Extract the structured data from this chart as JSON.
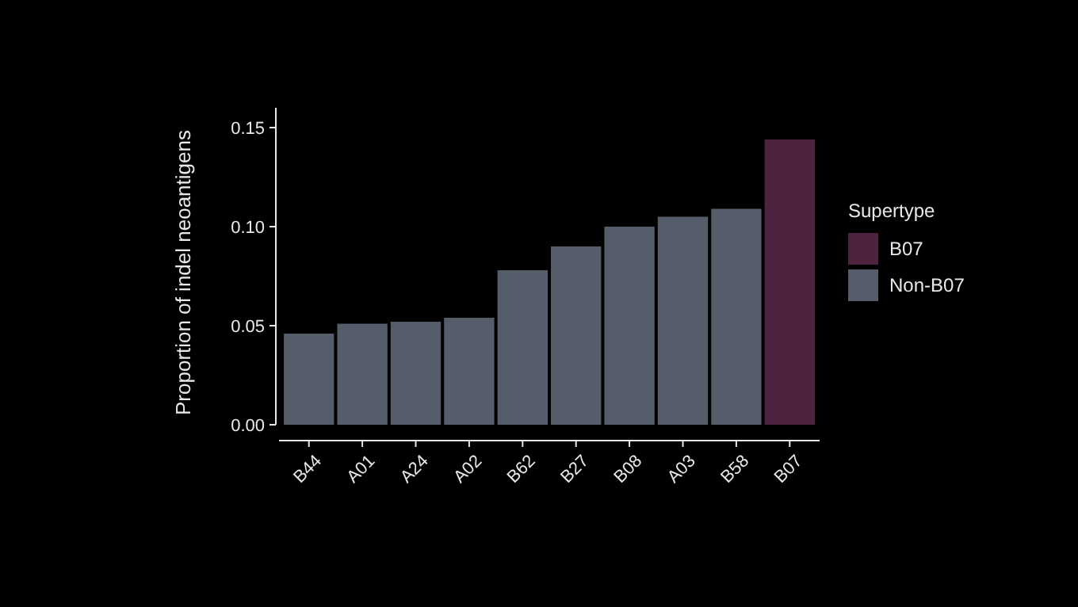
{
  "chart_data": {
    "type": "bar",
    "ylabel": "Proportion of indel neoantigens",
    "legend_title": "Supertype",
    "legend": "right",
    "categories": [
      "B44",
      "A01",
      "A24",
      "A02",
      "B62",
      "B27",
      "B08",
      "A03",
      "B58",
      "B07"
    ],
    "series": [
      {
        "name": "B07",
        "color": "#4e2340",
        "values": [
          null,
          null,
          null,
          null,
          null,
          null,
          null,
          null,
          null,
          0.144
        ]
      },
      {
        "name": "Non-B07",
        "color": "#555d6b",
        "values": [
          0.046,
          0.051,
          0.052,
          0.054,
          0.078,
          0.09,
          0.1,
          0.105,
          0.109,
          null
        ]
      }
    ],
    "ylim": [
      0,
      0.16
    ],
    "yticks": [
      {
        "value": 0,
        "label": "0.00"
      },
      {
        "value": 0.05,
        "label": "0.05"
      },
      {
        "value": 0.1,
        "label": "0.10"
      },
      {
        "value": 0.15,
        "label": "0.15"
      }
    ]
  }
}
